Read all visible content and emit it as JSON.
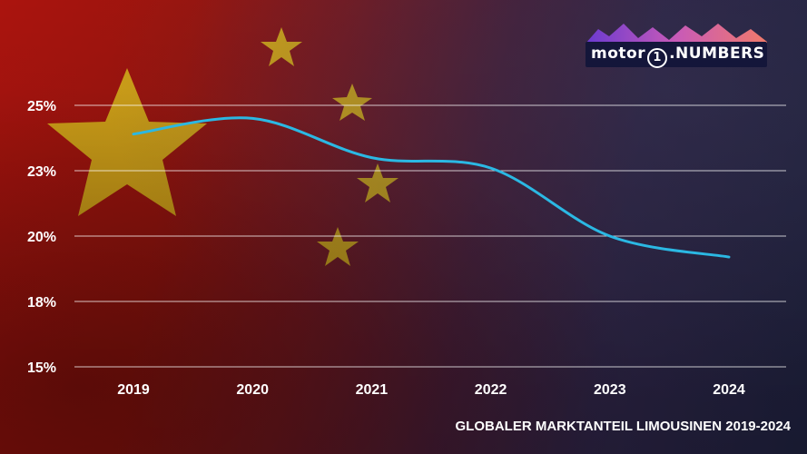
{
  "logo": {
    "word": "motor",
    "digit": "1",
    "suffix": ".NUMBERS"
  },
  "caption": "GLOBALER MARKTANTEIL LIMOUSINEN 2019-2024",
  "colors": {
    "line": "#2bb8e3",
    "grid": "#ffffff",
    "star": "#e6c51c",
    "text": "#ffffff"
  },
  "chart_data": {
    "type": "line",
    "x": [
      "2019",
      "2020",
      "2021",
      "2022",
      "2023",
      "2024"
    ],
    "series": [
      {
        "values": [
          23.9,
          24.5,
          23.0,
          22.6,
          20.0,
          19.2
        ]
      }
    ],
    "y_ticks": [
      15,
      17.5,
      20,
      22.5,
      25
    ],
    "y_tick_labels": [
      "15%",
      "18%",
      "20%",
      "23%",
      "25%"
    ],
    "ylim": [
      15,
      25
    ],
    "grid": true,
    "smooth": true
  }
}
